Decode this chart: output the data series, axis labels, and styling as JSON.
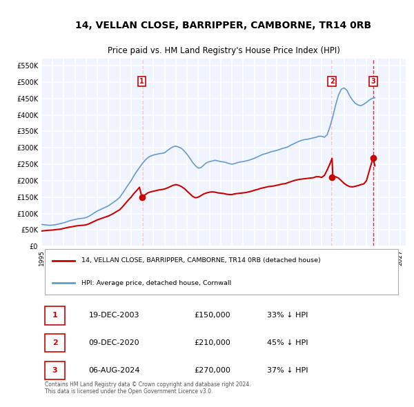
{
  "title": "14, VELLAN CLOSE, BARRIPPER, CAMBORNE, TR14 0RB",
  "subtitle": "Price paid vs. HM Land Registry's House Price Index (HPI)",
  "legend_label_red": "14, VELLAN CLOSE, BARRIPPER, CAMBORNE, TR14 0RB (detached house)",
  "legend_label_blue": "HPI: Average price, detached house, Cornwall",
  "ylabel": "",
  "ylim": [
    0,
    570000
  ],
  "yticks": [
    0,
    50000,
    100000,
    150000,
    200000,
    250000,
    300000,
    350000,
    400000,
    450000,
    500000,
    550000
  ],
  "ytick_labels": [
    "£0",
    "£50K",
    "£100K",
    "£150K",
    "£200K",
    "£250K",
    "£300K",
    "£350K",
    "£400K",
    "£450K",
    "£500K",
    "£550K"
  ],
  "xlim_start": 1995.0,
  "xlim_end": 2027.5,
  "xticks": [
    1995,
    1996,
    1997,
    1998,
    1999,
    2000,
    2001,
    2002,
    2003,
    2004,
    2005,
    2006,
    2007,
    2008,
    2009,
    2010,
    2011,
    2012,
    2013,
    2014,
    2015,
    2016,
    2017,
    2018,
    2019,
    2020,
    2021,
    2022,
    2023,
    2024,
    2025,
    2026,
    2027
  ],
  "background_color": "#f0f4ff",
  "plot_bg_color": "#f0f4ff",
  "grid_color": "#ffffff",
  "red_color": "#cc0000",
  "blue_color": "#6699cc",
  "sale_points": [
    {
      "year": 2003.96,
      "price": 150000,
      "label": "1"
    },
    {
      "year": 2020.93,
      "price": 210000,
      "label": "2"
    },
    {
      "year": 2024.59,
      "price": 270000,
      "label": "3"
    }
  ],
  "vline_years": [
    2003.96,
    2020.93,
    2024.59
  ],
  "table_rows": [
    {
      "num": "1",
      "date": "19-DEC-2003",
      "price": "£150,000",
      "pct": "33% ↓ HPI"
    },
    {
      "num": "2",
      "date": "09-DEC-2020",
      "price": "£210,000",
      "pct": "45% ↓ HPI"
    },
    {
      "num": "3",
      "date": "06-AUG-2024",
      "price": "£270,000",
      "pct": "37% ↓ HPI"
    }
  ],
  "footer": "Contains HM Land Registry data © Crown copyright and database right 2024.\nThis data is licensed under the Open Government Licence v3.0.",
  "hpi_data": {
    "years": [
      1995.0,
      1995.25,
      1995.5,
      1995.75,
      1996.0,
      1996.25,
      1996.5,
      1996.75,
      1997.0,
      1997.25,
      1997.5,
      1997.75,
      1998.0,
      1998.25,
      1998.5,
      1998.75,
      1999.0,
      1999.25,
      1999.5,
      1999.75,
      2000.0,
      2000.25,
      2000.5,
      2000.75,
      2001.0,
      2001.25,
      2001.5,
      2001.75,
      2002.0,
      2002.25,
      2002.5,
      2002.75,
      2003.0,
      2003.25,
      2003.5,
      2003.75,
      2004.0,
      2004.25,
      2004.5,
      2004.75,
      2005.0,
      2005.25,
      2005.5,
      2005.75,
      2006.0,
      2006.25,
      2006.5,
      2006.75,
      2007.0,
      2007.25,
      2007.5,
      2007.75,
      2008.0,
      2008.25,
      2008.5,
      2008.75,
      2009.0,
      2009.25,
      2009.5,
      2009.75,
      2010.0,
      2010.25,
      2010.5,
      2010.75,
      2011.0,
      2011.25,
      2011.5,
      2011.75,
      2012.0,
      2012.25,
      2012.5,
      2012.75,
      2013.0,
      2013.25,
      2013.5,
      2013.75,
      2014.0,
      2014.25,
      2014.5,
      2014.75,
      2015.0,
      2015.25,
      2015.5,
      2015.75,
      2016.0,
      2016.25,
      2016.5,
      2016.75,
      2017.0,
      2017.25,
      2017.5,
      2017.75,
      2018.0,
      2018.25,
      2018.5,
      2018.75,
      2019.0,
      2019.25,
      2019.5,
      2019.75,
      2020.0,
      2020.25,
      2020.5,
      2020.75,
      2021.0,
      2021.25,
      2021.5,
      2021.75,
      2022.0,
      2022.25,
      2022.5,
      2022.75,
      2023.0,
      2023.25,
      2023.5,
      2023.75,
      2024.0,
      2024.25,
      2024.5,
      2024.75
    ],
    "values": [
      67000,
      66000,
      65000,
      64500,
      65000,
      66000,
      68000,
      70000,
      72000,
      75000,
      78000,
      80000,
      82000,
      84000,
      85000,
      86000,
      88000,
      92000,
      97000,
      103000,
      108000,
      112000,
      116000,
      120000,
      124000,
      130000,
      136000,
      142000,
      150000,
      162000,
      175000,
      188000,
      200000,
      215000,
      228000,
      240000,
      252000,
      262000,
      270000,
      275000,
      278000,
      280000,
      282000,
      283000,
      285000,
      292000,
      298000,
      303000,
      305000,
      302000,
      298000,
      290000,
      280000,
      268000,
      255000,
      245000,
      238000,
      240000,
      248000,
      255000,
      258000,
      260000,
      262000,
      260000,
      258000,
      257000,
      255000,
      252000,
      250000,
      252000,
      255000,
      257000,
      258000,
      260000,
      262000,
      265000,
      268000,
      272000,
      276000,
      280000,
      282000,
      285000,
      288000,
      290000,
      292000,
      295000,
      298000,
      300000,
      303000,
      308000,
      312000,
      316000,
      320000,
      323000,
      325000,
      326000,
      328000,
      330000,
      332000,
      335000,
      335000,
      332000,
      340000,
      365000,
      395000,
      430000,
      460000,
      478000,
      482000,
      475000,
      458000,
      445000,
      435000,
      430000,
      428000,
      432000,
      438000,
      445000,
      450000,
      452000
    ]
  },
  "red_data": {
    "years": [
      1995.0,
      1995.25,
      1995.5,
      1995.75,
      1996.0,
      1996.25,
      1996.5,
      1996.75,
      1997.0,
      1997.25,
      1997.5,
      1997.75,
      1998.0,
      1998.25,
      1998.5,
      1998.75,
      1999.0,
      1999.25,
      1999.5,
      1999.75,
      2000.0,
      2000.25,
      2000.5,
      2000.75,
      2001.0,
      2001.25,
      2001.5,
      2001.75,
      2002.0,
      2002.25,
      2002.5,
      2002.75,
      2003.0,
      2003.25,
      2003.5,
      2003.75,
      2003.96,
      2004.0,
      2004.25,
      2004.5,
      2004.75,
      2005.0,
      2005.25,
      2005.5,
      2005.75,
      2006.0,
      2006.25,
      2006.5,
      2006.75,
      2007.0,
      2007.25,
      2007.5,
      2007.75,
      2008.0,
      2008.25,
      2008.5,
      2008.75,
      2009.0,
      2009.25,
      2009.5,
      2009.75,
      2010.0,
      2010.25,
      2010.5,
      2010.75,
      2011.0,
      2011.25,
      2011.5,
      2011.75,
      2012.0,
      2012.25,
      2012.5,
      2012.75,
      2013.0,
      2013.25,
      2013.5,
      2013.75,
      2014.0,
      2014.25,
      2014.5,
      2014.75,
      2015.0,
      2015.25,
      2015.5,
      2015.75,
      2016.0,
      2016.25,
      2016.5,
      2016.75,
      2017.0,
      2017.25,
      2017.5,
      2017.75,
      2018.0,
      2018.25,
      2018.5,
      2018.75,
      2019.0,
      2019.25,
      2019.5,
      2019.75,
      2020.0,
      2020.25,
      2020.5,
      2020.75,
      2020.93,
      2021.0,
      2021.25,
      2021.5,
      2021.75,
      2022.0,
      2022.25,
      2022.5,
      2022.75,
      2023.0,
      2023.25,
      2023.5,
      2023.75,
      2024.0,
      2024.25,
      2024.59,
      2024.75
    ],
    "values": [
      47000,
      48000,
      49000,
      49500,
      50000,
      51000,
      52000,
      53000,
      55000,
      57000,
      59000,
      60000,
      62000,
      63000,
      64000,
      64500,
      66000,
      69000,
      73000,
      77000,
      81000,
      84000,
      87000,
      90000,
      93000,
      97000,
      102000,
      107000,
      112000,
      121000,
      131000,
      141000,
      150000,
      161000,
      170000,
      180000,
      150000,
      152000,
      157000,
      163000,
      166000,
      168000,
      170000,
      172000,
      173000,
      175000,
      178000,
      182000,
      186000,
      188000,
      186000,
      182000,
      176000,
      168000,
      160000,
      152000,
      148000,
      150000,
      155000,
      160000,
      163000,
      165000,
      166000,
      165000,
      163000,
      162000,
      161000,
      159000,
      158000,
      158000,
      160000,
      161000,
      162000,
      163000,
      164000,
      166000,
      168000,
      171000,
      173000,
      176000,
      178000,
      180000,
      182000,
      183000,
      184000,
      186000,
      188000,
      190000,
      191000,
      194000,
      197000,
      200000,
      202000,
      204000,
      205000,
      206000,
      207000,
      208000,
      209000,
      212000,
      212000,
      210000,
      216000,
      233000,
      252000,
      268000,
      210000,
      212000,
      208000,
      200000,
      192000,
      186000,
      182000,
      181000,
      183000,
      185000,
      188000,
      190000,
      200000,
      230000,
      270000,
      245000
    ]
  }
}
